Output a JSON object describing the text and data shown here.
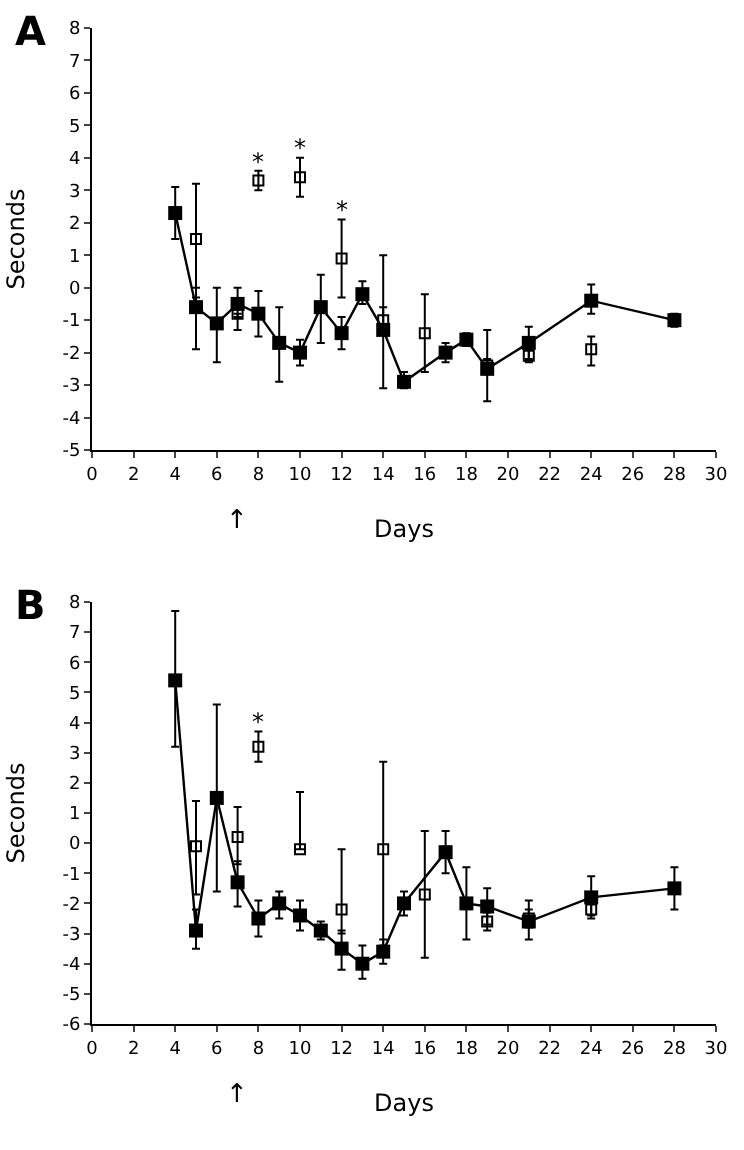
{
  "chart_data": [
    {
      "type": "line",
      "title": "A",
      "xlabel": "Days",
      "ylabel": "Seconds",
      "xlim": [
        0,
        30
      ],
      "xticks": [
        0,
        2,
        4,
        6,
        8,
        10,
        12,
        14,
        16,
        18,
        20,
        22,
        24,
        26,
        28,
        30
      ],
      "ylim": [
        -5,
        8
      ],
      "yticks": [
        -5,
        -4,
        -3,
        -2,
        -1,
        0,
        1,
        2,
        3,
        4,
        5,
        6,
        7,
        8
      ],
      "marker": "square",
      "line_style": "solid",
      "series": [
        {
          "type": "line",
          "color": "#000000",
          "x": [
            4,
            5,
            6,
            7,
            8,
            9,
            10,
            11,
            12,
            13,
            14,
            15,
            17,
            18,
            19,
            21,
            24,
            28
          ],
          "values": [
            2.3,
            -0.6,
            -1.1,
            -0.5,
            -0.8,
            -1.7,
            -2.0,
            -0.6,
            -1.4,
            -0.2,
            -1.3,
            -2.9,
            -2.0,
            -1.6,
            -2.5,
            -1.7,
            -0.4,
            -1.0
          ],
          "errors": [
            [
              1.5,
              3.1
            ],
            [
              -1.9,
              0.0
            ],
            [
              -2.3,
              0.0
            ],
            [
              -0.9,
              0.0
            ],
            [
              -1.5,
              -0.1
            ],
            [
              -2.9,
              -0.6
            ],
            [
              -2.4,
              -1.6
            ],
            [
              -1.7,
              0.4
            ],
            [
              -1.9,
              -0.9
            ],
            [
              -0.5,
              0.2
            ],
            [
              -3.1,
              1.0
            ],
            [
              -3.1,
              -2.6
            ],
            [
              -2.3,
              -1.7
            ],
            [
              -1.8,
              -1.4
            ],
            [
              -3.5,
              -1.3
            ],
            [
              -2.2,
              -1.2
            ],
            [
              -0.8,
              0.1
            ],
            [
              -1.2,
              -0.8
            ]
          ]
        },
        {
          "type": "scatter",
          "color": "#000000",
          "x": [
            5,
            7,
            8,
            10,
            12,
            14,
            16,
            19,
            21,
            24
          ],
          "values": [
            1.5,
            -0.8,
            3.3,
            3.4,
            0.9,
            -1.0,
            -1.4,
            -2.4,
            -2.1,
            -1.9
          ],
          "errors": [
            [
              -0.3,
              3.2
            ],
            [
              -1.3,
              -0.8
            ],
            [
              3.0,
              3.6
            ],
            [
              2.8,
              4.0
            ],
            [
              -0.3,
              2.1
            ],
            [
              -1.4,
              -0.6
            ],
            [
              -2.6,
              -0.2
            ],
            [
              -2.6,
              -2.2
            ],
            [
              -2.3,
              -1.9
            ],
            [
              -2.4,
              -1.5
            ]
          ]
        }
      ],
      "annotations": [
        {
          "text": "*",
          "x": 8,
          "y": 3.9
        },
        {
          "text": "*",
          "x": 10,
          "y": 4.3
        },
        {
          "text": "*",
          "x": 12,
          "y": 2.4
        },
        "↑"
      ]
    },
    {
      "type": "line",
      "title": "B",
      "xlabel": "Days",
      "ylabel": "Seconds",
      "xlim": [
        0,
        30
      ],
      "xticks": [
        0,
        2,
        4,
        6,
        8,
        10,
        12,
        14,
        16,
        18,
        20,
        22,
        24,
        26,
        28,
        30
      ],
      "ylim": [
        -6,
        8
      ],
      "yticks": [
        -6,
        -5,
        -4,
        -3,
        -2,
        -1,
        0,
        1,
        2,
        3,
        4,
        5,
        6,
        7,
        8
      ],
      "marker": "square",
      "line_style": "solid",
      "series": [
        {
          "type": "line",
          "color": "#000000",
          "x": [
            4,
            5,
            6,
            7,
            8,
            9,
            10,
            11,
            12,
            13,
            14,
            15,
            17,
            18,
            19,
            21,
            24,
            28
          ],
          "values": [
            5.4,
            -2.9,
            1.5,
            -1.3,
            -2.5,
            -2.0,
            -2.4,
            -2.9,
            -3.5,
            -4.0,
            -3.6,
            -2.0,
            -0.3,
            -2.0,
            -2.1,
            -2.6,
            -1.8,
            -1.5
          ],
          "errors": [
            [
              3.2,
              7.7
            ],
            [
              -3.5,
              -2.2
            ],
            [
              -1.6,
              4.6
            ],
            [
              -2.1,
              -0.6
            ],
            [
              -3.1,
              -1.9
            ],
            [
              -2.5,
              -1.6
            ],
            [
              -2.9,
              -1.9
            ],
            [
              -3.2,
              -2.6
            ],
            [
              -4.2,
              -2.9
            ],
            [
              -4.5,
              -3.4
            ],
            [
              -4.0,
              -3.2
            ],
            [
              -2.4,
              -1.6
            ],
            [
              -1.0,
              0.4
            ],
            [
              -3.2,
              -0.8
            ],
            [
              -2.7,
              -1.5
            ],
            [
              -3.2,
              -1.9
            ],
            [
              -2.4,
              -1.1
            ],
            [
              -2.2,
              -0.8
            ]
          ]
        },
        {
          "type": "scatter",
          "color": "#000000",
          "x": [
            5,
            7,
            8,
            10,
            12,
            14,
            16,
            19,
            21,
            24
          ],
          "values": [
            -0.1,
            0.2,
            3.2,
            -0.2,
            -2.2,
            -0.2,
            -1.7,
            -2.6,
            -2.5,
            -2.2
          ],
          "errors": [
            [
              -1.7,
              1.4
            ],
            [
              -0.7,
              1.2
            ],
            [
              2.7,
              3.7
            ],
            [
              -0.2,
              1.7
            ],
            [
              -3.0,
              -0.2
            ],
            [
              -3.4,
              2.7
            ],
            [
              -3.8,
              0.4
            ],
            [
              -2.9,
              -2.3
            ],
            [
              -2.8,
              -2.2
            ],
            [
              -2.5,
              -1.9
            ]
          ]
        }
      ],
      "annotations": [
        {
          "text": "*",
          "x": 8,
          "y": 4.0
        },
        "↑"
      ]
    }
  ]
}
